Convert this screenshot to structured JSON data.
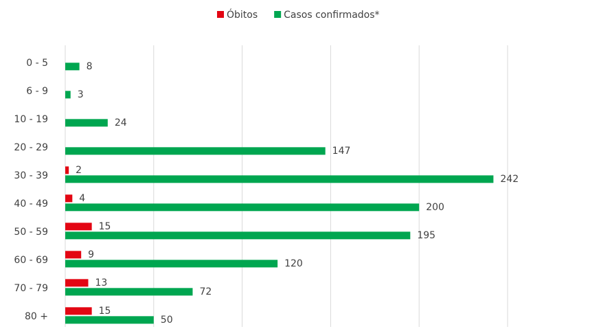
{
  "chart_data": {
    "type": "hbar",
    "categories": [
      "0 - 5",
      "6 - 9",
      "10 - 19",
      "20 - 29",
      "30 - 39",
      "40 - 49",
      "50 - 59",
      "60 - 69",
      "70 - 79",
      "80 +"
    ],
    "series": [
      {
        "name": "Óbitos",
        "color": "#e30613",
        "values": [
          null,
          null,
          null,
          null,
          2,
          4,
          15,
          9,
          13,
          15
        ]
      },
      {
        "name": "Casos confirmados*",
        "color": "#00a650",
        "values": [
          8,
          3,
          24,
          147,
          242,
          200,
          195,
          120,
          72,
          50
        ]
      }
    ],
    "xlim": [
      0,
      250
    ],
    "xticks": [
      0,
      50,
      100,
      150,
      200,
      250
    ],
    "grid": true,
    "legend": "top"
  }
}
